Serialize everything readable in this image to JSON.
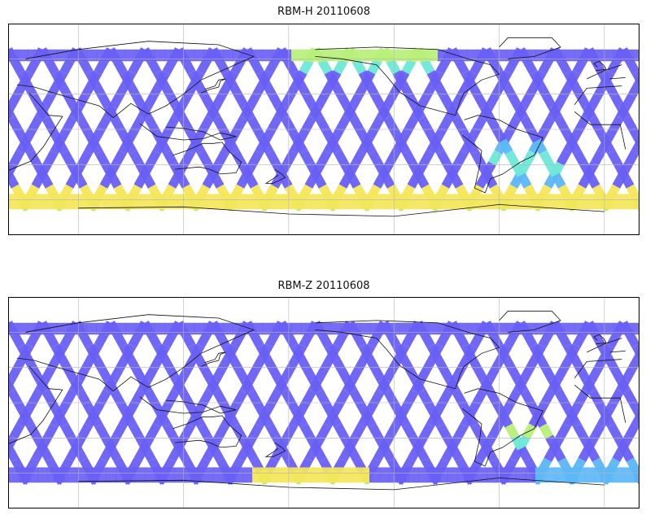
{
  "panels": [
    {
      "title": "RBM-H 20110608",
      "colormap": [
        "#6a5ff5",
        "#5f88f8",
        "#5cb7f7",
        "#6ee8d8",
        "#b8f07a",
        "#f5e65a",
        "#f8a14a",
        "#e8615a"
      ],
      "hot_zones": [
        {
          "region": "south-band",
          "lon_range": [
            -180,
            180
          ],
          "lat_range": [
            -68,
            -48
          ],
          "level": 0.85
        },
        {
          "region": "north-pacific-band",
          "lon_range": [
            -178,
            -95
          ],
          "lat_range": [
            52,
            68
          ],
          "level": 0.75
        },
        {
          "region": "south-america-diagonal",
          "lon_range": [
            -65,
            -25
          ],
          "lat_range": [
            -45,
            -10
          ],
          "level": 0.55
        }
      ]
    },
    {
      "title": "RBM-Z 20110608",
      "colormap": [
        "#6a5ff5",
        "#5f88f8",
        "#5cb7f7",
        "#6ee8d8",
        "#b8f07a",
        "#f5e65a",
        "#f8a14a",
        "#e8615a"
      ],
      "hot_zones": [
        {
          "region": "south-band-pacific",
          "lon_range": [
            160,
            225
          ],
          "lat_range": [
            -68,
            -55
          ],
          "level": 0.7
        },
        {
          "region": "south-band-atlantic",
          "lon_range": [
            -40,
            20
          ],
          "lat_range": [
            -65,
            -50
          ],
          "level": 0.4
        },
        {
          "region": "south-america-diagonal",
          "lon_range": [
            -60,
            -30
          ],
          "lat_range": [
            -40,
            -15
          ],
          "level": 0.6
        }
      ]
    }
  ]
}
